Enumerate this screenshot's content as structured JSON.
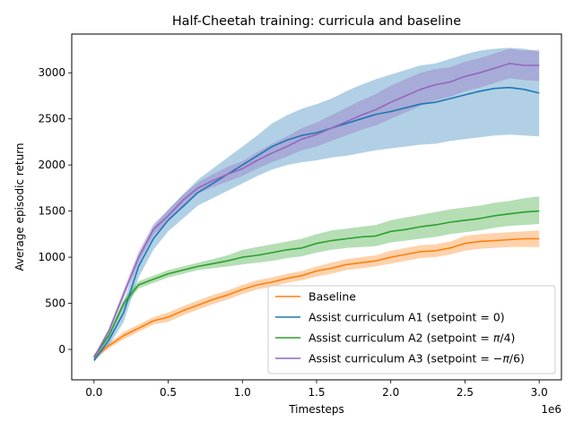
{
  "chart_data": {
    "type": "line",
    "title": "Half-Cheetah training: curricula and baseline",
    "xlabel": "Timesteps",
    "ylabel": "Average episodic return",
    "x_offset_label": "1e6",
    "x_scale": 1000000,
    "xlim": [
      -150000,
      3150000
    ],
    "ylim": [
      -330,
      3420
    ],
    "xticks": [
      0,
      500000,
      1000000,
      1500000,
      2000000,
      2500000,
      3000000
    ],
    "xtick_labels": [
      "0.0",
      "0.5",
      "1.0",
      "1.5",
      "2.0",
      "2.5",
      "3.0"
    ],
    "yticks": [
      0,
      500,
      1000,
      1500,
      2000,
      2500,
      3000
    ],
    "ytick_labels": [
      "0",
      "500",
      "1000",
      "1500",
      "2000",
      "2500",
      "3000"
    ],
    "legend_position": "lower-right",
    "series": [
      {
        "name": "Baseline",
        "color": "#ff7f0e",
        "x": [
          0,
          100000,
          200000,
          300000,
          400000,
          500000,
          600000,
          700000,
          800000,
          900000,
          1000000,
          1100000,
          1200000,
          1300000,
          1400000,
          1500000,
          1600000,
          1700000,
          1800000,
          1900000,
          2000000,
          2100000,
          2200000,
          2300000,
          2400000,
          2500000,
          2600000,
          2700000,
          2800000,
          2900000,
          3000000
        ],
        "mean": [
          -80,
          40,
          150,
          230,
          310,
          350,
          420,
          480,
          540,
          590,
          650,
          700,
          730,
          770,
          800,
          850,
          880,
          920,
          940,
          960,
          1000,
          1030,
          1060,
          1070,
          1100,
          1150,
          1170,
          1180,
          1190,
          1200,
          1200
        ],
        "lower": [
          -110,
          10,
          110,
          190,
          270,
          300,
          370,
          430,
          490,
          540,
          600,
          650,
          680,
          720,
          750,
          790,
          820,
          860,
          880,
          900,
          930,
          960,
          990,
          1000,
          1030,
          1070,
          1090,
          1100,
          1110,
          1110,
          1110
        ],
        "upper": [
          -50,
          70,
          190,
          270,
          350,
          400,
          470,
          530,
          590,
          640,
          700,
          750,
          780,
          820,
          850,
          900,
          940,
          980,
          1000,
          1020,
          1070,
          1100,
          1130,
          1140,
          1170,
          1230,
          1250,
          1260,
          1270,
          1280,
          1290
        ]
      },
      {
        "name": "Assist curriculum A1 (setpoint = 0)",
        "color": "#1f77b4",
        "x": [
          0,
          100000,
          200000,
          300000,
          400000,
          500000,
          600000,
          700000,
          800000,
          900000,
          1000000,
          1100000,
          1200000,
          1300000,
          1400000,
          1500000,
          1600000,
          1700000,
          1800000,
          1900000,
          2000000,
          2100000,
          2200000,
          2300000,
          2400000,
          2500000,
          2600000,
          2700000,
          2800000,
          2900000,
          3000000
        ],
        "mean": [
          -120,
          100,
          400,
          900,
          1200,
          1400,
          1550,
          1700,
          1800,
          1900,
          2000,
          2100,
          2200,
          2270,
          2320,
          2350,
          2400,
          2450,
          2500,
          2550,
          2580,
          2620,
          2660,
          2680,
          2720,
          2760,
          2800,
          2830,
          2840,
          2820,
          2780
        ],
        "lower": [
          -140,
          40,
          300,
          780,
          1080,
          1280,
          1420,
          1560,
          1640,
          1720,
          1800,
          1880,
          1950,
          2000,
          2030,
          2050,
          2080,
          2100,
          2130,
          2160,
          2180,
          2200,
          2220,
          2230,
          2260,
          2280,
          2300,
          2320,
          2330,
          2320,
          2310
        ],
        "upper": [
          -100,
          160,
          500,
          1020,
          1330,
          1520,
          1680,
          1840,
          1960,
          2080,
          2200,
          2320,
          2450,
          2540,
          2610,
          2660,
          2720,
          2800,
          2870,
          2930,
          2980,
          3030,
          3080,
          3100,
          3150,
          3200,
          3240,
          3260,
          3270,
          3260,
          3230
        ]
      },
      {
        "name": "Assist curriculum A2 (setpoint = $\\pi/4$)",
        "label_parts": [
          "Assist curriculum A2 (setpoint = ",
          "π",
          "/4)"
        ],
        "color": "#2ca02c",
        "x": [
          0,
          100000,
          200000,
          300000,
          400000,
          500000,
          600000,
          700000,
          800000,
          900000,
          1000000,
          1100000,
          1200000,
          1300000,
          1400000,
          1500000,
          1600000,
          1700000,
          1800000,
          1900000,
          2000000,
          2100000,
          2200000,
          2300000,
          2400000,
          2500000,
          2600000,
          2700000,
          2800000,
          2900000,
          3000000
        ],
        "mean": [
          -80,
          150,
          500,
          700,
          760,
          820,
          860,
          900,
          930,
          960,
          1000,
          1020,
          1050,
          1080,
          1100,
          1150,
          1180,
          1200,
          1220,
          1230,
          1280,
          1300,
          1330,
          1350,
          1380,
          1400,
          1420,
          1450,
          1470,
          1490,
          1500
        ],
        "lower": [
          -100,
          120,
          460,
          660,
          720,
          780,
          820,
          860,
          880,
          900,
          920,
          940,
          960,
          990,
          1010,
          1050,
          1080,
          1100,
          1110,
          1120,
          1160,
          1180,
          1200,
          1220,
          1250,
          1270,
          1290,
          1320,
          1340,
          1350,
          1360
        ],
        "upper": [
          -60,
          180,
          540,
          740,
          800,
          860,
          900,
          940,
          980,
          1020,
          1080,
          1110,
          1140,
          1170,
          1200,
          1250,
          1290,
          1310,
          1330,
          1350,
          1400,
          1430,
          1460,
          1490,
          1520,
          1540,
          1560,
          1590,
          1610,
          1640,
          1660
        ]
      },
      {
        "name": "Assist curriculum A3 (setpoint = $-\\pi/6$)",
        "label_parts": [
          "Assist curriculum A3 (setpoint = ",
          "−π",
          "/6)"
        ],
        "color": "#9467bd",
        "x": [
          0,
          100000,
          200000,
          300000,
          400000,
          500000,
          600000,
          700000,
          800000,
          900000,
          1000000,
          1100000,
          1200000,
          1300000,
          1400000,
          1500000,
          1600000,
          1700000,
          1800000,
          1900000,
          2000000,
          2100000,
          2200000,
          2300000,
          2400000,
          2500000,
          2600000,
          2700000,
          2800000,
          2900000,
          3000000
        ],
        "mean": [
          -90,
          200,
          600,
          1000,
          1300,
          1450,
          1620,
          1750,
          1830,
          1900,
          1960,
          2050,
          2130,
          2200,
          2280,
          2330,
          2400,
          2470,
          2540,
          2600,
          2680,
          2750,
          2820,
          2870,
          2900,
          2960,
          3000,
          3050,
          3100,
          3080,
          3080
        ],
        "lower": [
          -110,
          170,
          550,
          940,
          1240,
          1390,
          1560,
          1690,
          1760,
          1820,
          1880,
          1960,
          2030,
          2090,
          2160,
          2200,
          2260,
          2320,
          2380,
          2430,
          2500,
          2570,
          2640,
          2700,
          2740,
          2800,
          2840,
          2890,
          2940,
          2920,
          2910
        ],
        "upper": [
          -70,
          230,
          650,
          1060,
          1360,
          1510,
          1680,
          1810,
          1900,
          1980,
          2040,
          2140,
          2230,
          2310,
          2400,
          2460,
          2540,
          2620,
          2700,
          2770,
          2860,
          2930,
          3000,
          3040,
          3060,
          3120,
          3160,
          3210,
          3260,
          3240,
          3250
        ]
      }
    ]
  }
}
